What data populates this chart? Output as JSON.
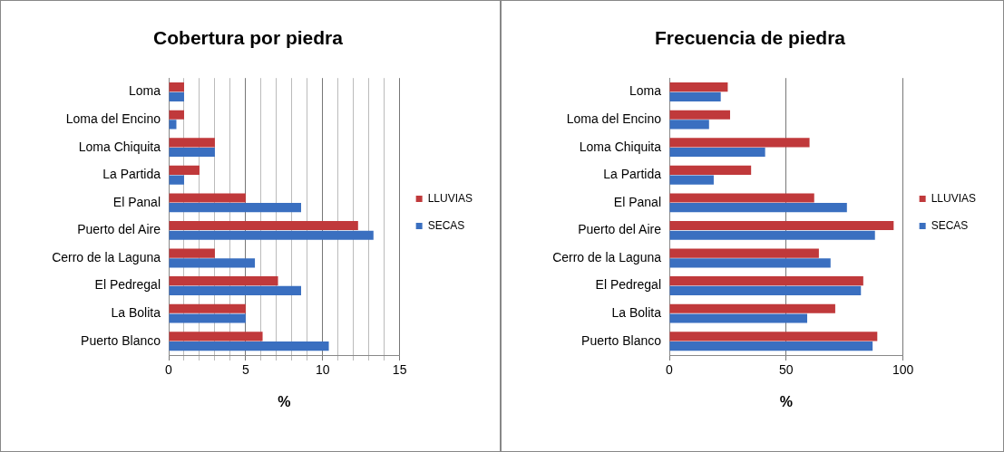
{
  "chart_data": [
    {
      "type": "bar",
      "title": "Cobertura por piedra",
      "orientation": "horizontal",
      "xlabel": "%",
      "categories": [
        "Loma",
        "Loma del Encino",
        "Loma Chiquita",
        "La Partida",
        "El Panal",
        "Puerto del Aire",
        "Cerro de la Laguna",
        "El Pedregal",
        "La Bolita",
        "Puerto Blanco"
      ],
      "series": [
        {
          "name": "LLUVIAS",
          "color": "#c0393b",
          "values": [
            1,
            1,
            3,
            2,
            5,
            12.3,
            3,
            7.1,
            5,
            6.1
          ]
        },
        {
          "name": "SECAS",
          "color": "#3a6fc0",
          "values": [
            1,
            0.5,
            3,
            1,
            8.6,
            13.3,
            5.6,
            8.6,
            5,
            10.4
          ]
        }
      ],
      "xlim": [
        0,
        15
      ],
      "xticks": [
        0,
        {
          "value": 1,
          "label": null
        },
        {
          "value": 2,
          "label": null
        },
        {
          "value": 3,
          "label": null
        },
        {
          "value": 4,
          "label": null
        },
        5,
        {
          "value": 6,
          "label": null
        },
        {
          "value": 7,
          "label": null
        },
        {
          "value": 8,
          "label": null
        },
        {
          "value": 9,
          "label": null
        },
        10,
        {
          "value": 11,
          "label": null
        },
        {
          "value": 12,
          "label": null
        },
        {
          "value": 13,
          "label": null
        },
        {
          "value": 14,
          "label": null
        },
        15
      ],
      "grid": "x",
      "legend": "right"
    },
    {
      "type": "bar",
      "title": "Frecuencia de piedra",
      "orientation": "horizontal",
      "xlabel": "%",
      "categories": [
        "Loma",
        "Loma del Encino",
        "Loma Chiquita",
        "La Partida",
        "El Panal",
        "Puerto del Aire",
        "Cerro de la Laguna",
        "El Pedregal",
        "La Bolita",
        "Puerto Blanco"
      ],
      "series": [
        {
          "name": "LLUVIAS",
          "color": "#c0393b",
          "values": [
            25,
            26,
            60,
            35,
            62,
            96,
            64,
            83,
            71,
            89
          ]
        },
        {
          "name": "SECAS",
          "color": "#3a6fc0",
          "values": [
            22,
            17,
            41,
            19,
            76,
            88,
            69,
            82,
            59,
            87
          ]
        }
      ],
      "xlim": [
        0,
        100
      ],
      "xticks": [
        0,
        50,
        100
      ],
      "grid": "x",
      "legend": "right"
    }
  ]
}
